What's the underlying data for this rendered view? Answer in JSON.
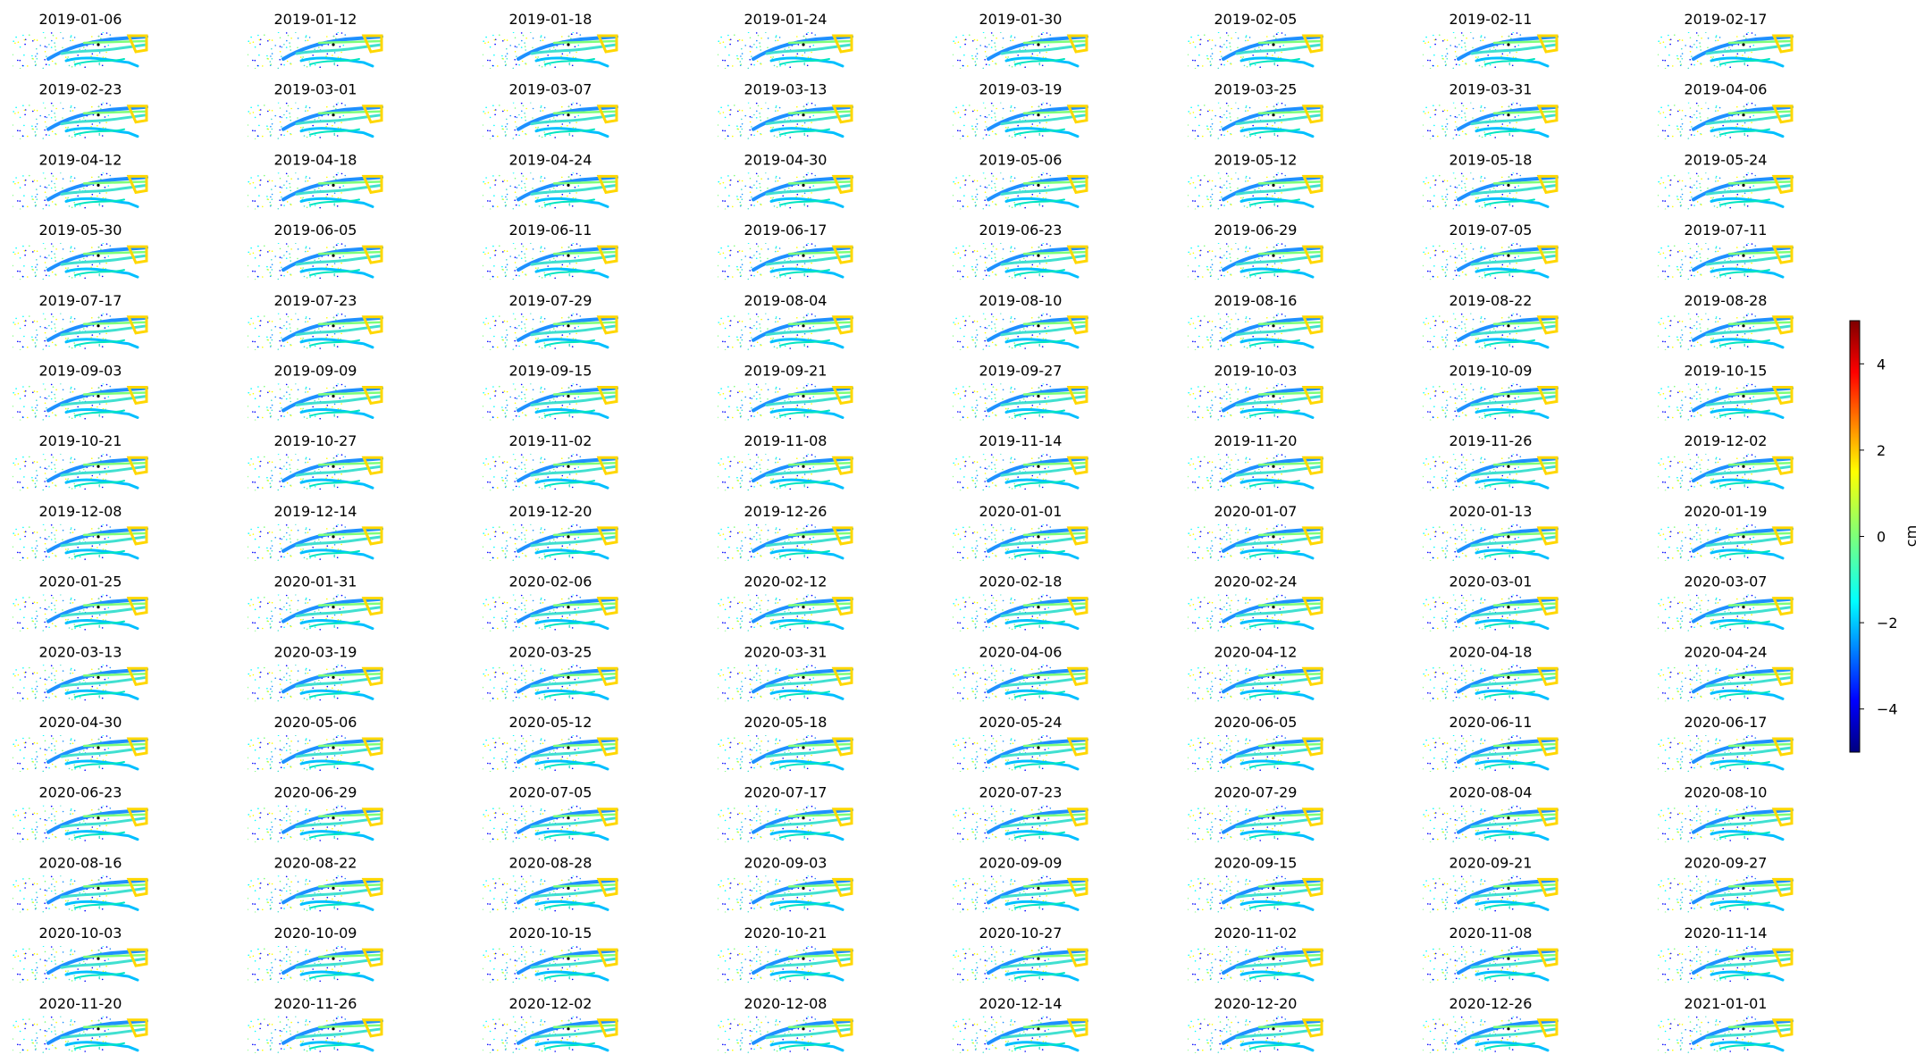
{
  "panels": [
    "2019-01-06",
    "2019-01-12",
    "2019-01-18",
    "2019-01-24",
    "2019-01-30",
    "2019-02-05",
    "2019-02-11",
    "2019-02-17",
    "2019-02-23",
    "2019-03-01",
    "2019-03-07",
    "2019-03-13",
    "2019-03-19",
    "2019-03-25",
    "2019-03-31",
    "2019-04-06",
    "2019-04-12",
    "2019-04-18",
    "2019-04-24",
    "2019-04-30",
    "2019-05-06",
    "2019-05-12",
    "2019-05-18",
    "2019-05-24",
    "2019-05-30",
    "2019-06-05",
    "2019-06-11",
    "2019-06-17",
    "2019-06-23",
    "2019-06-29",
    "2019-07-05",
    "2019-07-11",
    "2019-07-17",
    "2019-07-23",
    "2019-07-29",
    "2019-08-04",
    "2019-08-10",
    "2019-08-16",
    "2019-08-22",
    "2019-08-28",
    "2019-09-03",
    "2019-09-09",
    "2019-09-15",
    "2019-09-21",
    "2019-09-27",
    "2019-10-03",
    "2019-10-09",
    "2019-10-15",
    "2019-10-21",
    "2019-10-27",
    "2019-11-02",
    "2019-11-08",
    "2019-11-14",
    "2019-11-20",
    "2019-11-26",
    "2019-12-02",
    "2019-12-08",
    "2019-12-14",
    "2019-12-20",
    "2019-12-26",
    "2020-01-01",
    "2020-01-07",
    "2020-01-13",
    "2020-01-19",
    "2020-01-25",
    "2020-01-31",
    "2020-02-06",
    "2020-02-12",
    "2020-02-18",
    "2020-02-24",
    "2020-03-01",
    "2020-03-07",
    "2020-03-13",
    "2020-03-19",
    "2020-03-25",
    "2020-03-31",
    "2020-04-06",
    "2020-04-12",
    "2020-04-18",
    "2020-04-24",
    "2020-04-30",
    "2020-05-06",
    "2020-05-12",
    "2020-05-18",
    "2020-05-24",
    "2020-06-05",
    "2020-06-11",
    "2020-06-17",
    "2020-06-23",
    "2020-06-29",
    "2020-07-05",
    "2020-07-17",
    "2020-07-23",
    "2020-07-29",
    "2020-08-04",
    "2020-08-10",
    "2020-08-16",
    "2020-08-22",
    "2020-08-28",
    "2020-09-03",
    "2020-09-09",
    "2020-09-15",
    "2020-09-21",
    "2020-09-27",
    "2020-10-03",
    "2020-10-09",
    "2020-10-15",
    "2020-10-21",
    "2020-10-27",
    "2020-11-02",
    "2020-11-08",
    "2020-11-14",
    "2020-11-20",
    "2020-11-26",
    "2020-12-02",
    "2020-12-08",
    "2020-12-14",
    "2020-12-20",
    "2020-12-26",
    "2021-01-01"
  ],
  "colorbar": {
    "label": "cm",
    "lim": [
      -5,
      5
    ],
    "ticks": [
      {
        "value": -4,
        "label": "−4"
      },
      {
        "value": -2,
        "label": "−2"
      },
      0,
      2,
      4
    ]
  }
}
